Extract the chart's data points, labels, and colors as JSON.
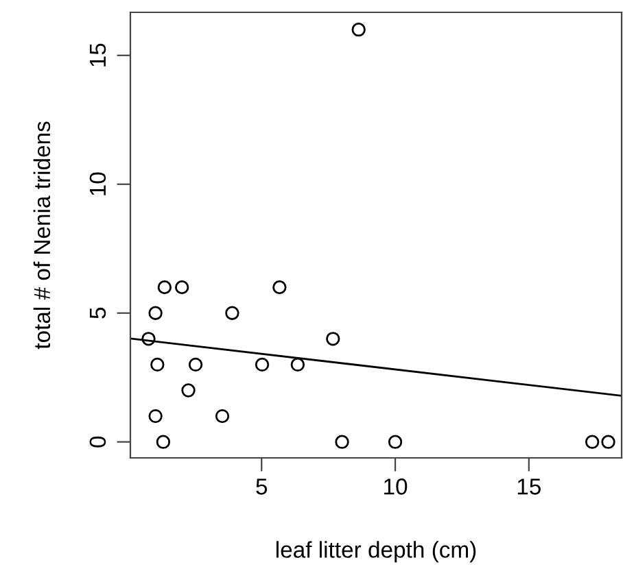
{
  "chart_data": {
    "type": "scatter",
    "xlabel": "leaf litter depth (cm)",
    "ylabel": "total # of Nenia tridens",
    "xlim": [
      0.09,
      18.47
    ],
    "ylim": [
      -0.62,
      16.67
    ],
    "xticks": [
      5,
      10,
      15
    ],
    "yticks": [
      0,
      5,
      10,
      15
    ],
    "grid": false,
    "series": [
      {
        "marker": "circle",
        "color": "#000000",
        "x": [
          0.77,
          1.03,
          1.37,
          2.02,
          1.1,
          2.53,
          2.26,
          1.03,
          3.53,
          1.32,
          3.9,
          5.02,
          5.67,
          6.35,
          7.67,
          8.01,
          8.63,
          10.0,
          17.37,
          17.97
        ],
        "values": [
          4,
          5,
          6,
          6,
          3,
          3,
          2,
          1,
          1,
          0,
          5,
          3,
          6,
          3,
          4,
          0,
          16,
          0,
          0,
          0
        ]
      },
      {
        "type": "line",
        "marker": "none",
        "color": "#000000",
        "x": [
          0.09,
          18.47
        ],
        "values": [
          4.01,
          1.79
        ]
      }
    ]
  }
}
